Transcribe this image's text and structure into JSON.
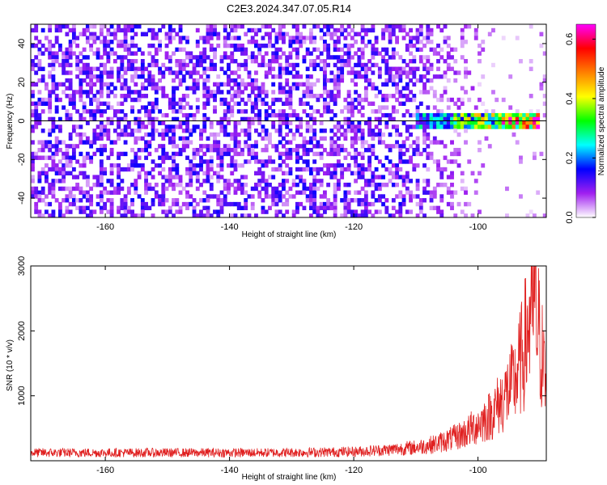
{
  "title": "C2E3.2024.347.07.05.R14",
  "chart_data": [
    {
      "type": "heatmap",
      "xlabel": "Height of straight line (km)",
      "ylabel": "Frequency (Hz)",
      "xlim": [
        -172,
        -89
      ],
      "ylim": [
        -50,
        50
      ],
      "xticks": [
        -160,
        -140,
        -120,
        -100
      ],
      "yticks": [
        -40,
        -20,
        0,
        20,
        40
      ],
      "colorbar": {
        "label": "Normalized spectral amplitude",
        "range": [
          0,
          0.65
        ],
        "ticks": [
          0.0,
          0.2,
          0.4,
          0.6
        ],
        "colors": [
          "#ffffff",
          "#a020f0",
          "#0000ff",
          "#00ffff",
          "#00ff00",
          "#ffff00",
          "#ff8000",
          "#ff0000",
          "#ff00ff"
        ]
      },
      "features": [
        {
          "x_range": [
            -172,
            -110
          ],
          "y_range": [
            -50,
            50
          ],
          "amplitude": 0.08
        },
        {
          "x_range": [
            -110,
            -104
          ],
          "y_range": [
            -4,
            4
          ],
          "amplitude": 0.22
        },
        {
          "x_range": [
            -104,
            -97
          ],
          "y_range": [
            -4,
            4
          ],
          "amplitude": 0.35
        },
        {
          "x_range": [
            -97,
            -90
          ],
          "y_range": [
            -3,
            3
          ],
          "amplitude": 0.55
        }
      ]
    },
    {
      "type": "line",
      "xlabel": "Height of straight line (km)",
      "ylabel": "SNR (10 * v/v)",
      "xlim": [
        -172,
        -89
      ],
      "ylim": [
        0,
        3000
      ],
      "xticks": [
        -160,
        -140,
        -120,
        -100
      ],
      "yticks": [
        1000,
        2000,
        3000
      ],
      "color": "#e02020",
      "series": [
        {
          "x": [
            -172,
            -165,
            -160,
            -155,
            -150,
            -145,
            -140,
            -135,
            -130,
            -125,
            -120,
            -115,
            -110,
            -107,
            -104,
            -102,
            -100,
            -98,
            -96,
            -94,
            -93,
            -92,
            -91.5,
            -91,
            -90.5,
            -90,
            -89.5,
            -89
          ],
          "y": [
            150,
            150,
            150,
            150,
            150,
            150,
            150,
            150,
            155,
            160,
            170,
            200,
            250,
            310,
            420,
            520,
            680,
            850,
            1150,
            1500,
            1900,
            2400,
            2850,
            3000,
            2600,
            2200,
            1800,
            1300
          ]
        }
      ]
    }
  ]
}
